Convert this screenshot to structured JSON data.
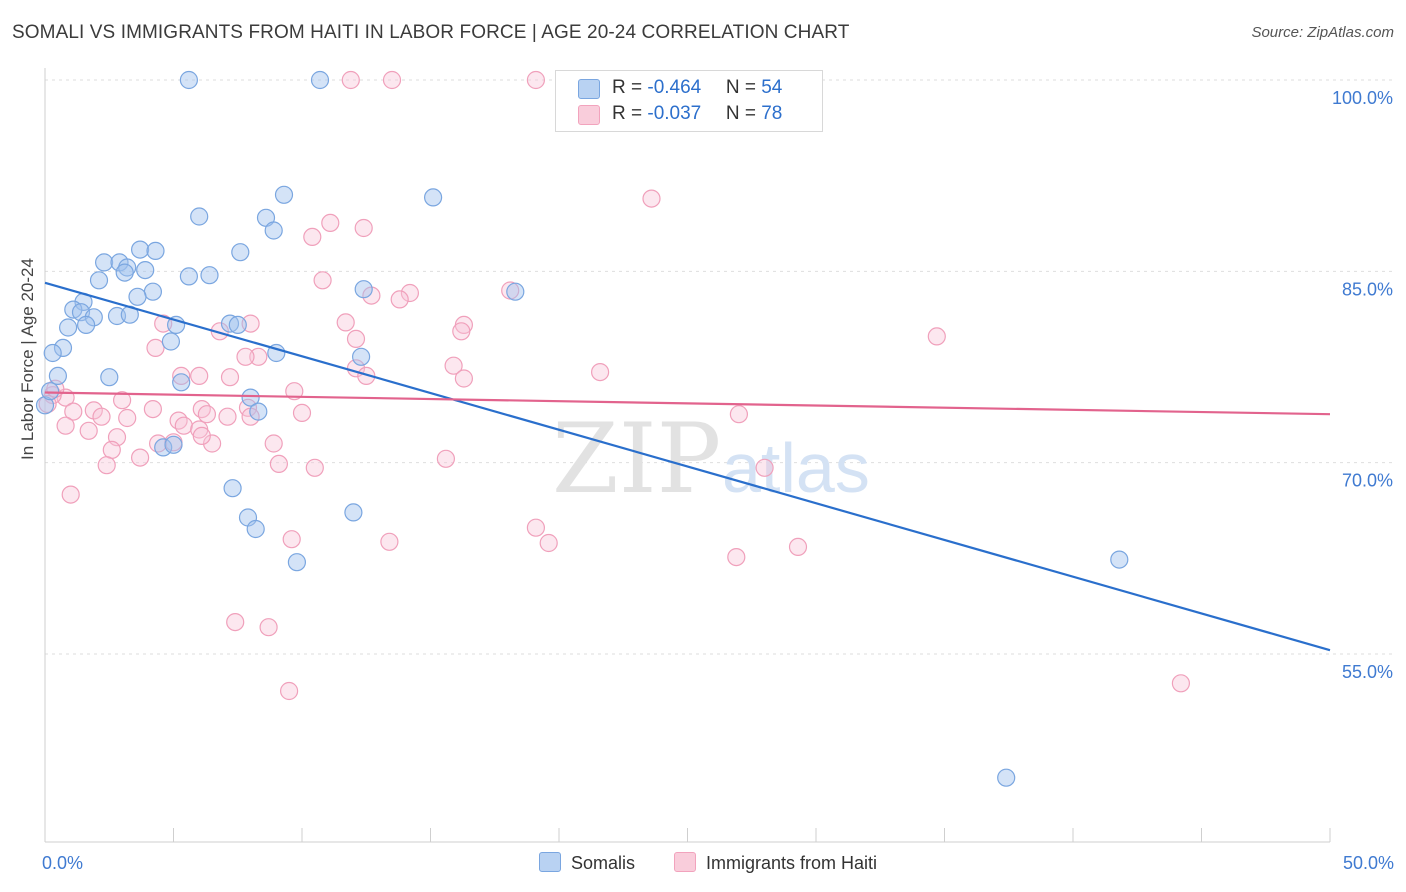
{
  "title": "SOMALI VS IMMIGRANTS FROM HAITI IN LABOR FORCE | AGE 20-24 CORRELATION CHART",
  "source": "Source: ZipAtlas.com",
  "watermark": {
    "zip": "ZIP",
    "atlas": "atlas"
  },
  "legend": {
    "rows": [
      {
        "r_label": "R = ",
        "r_value": "-0.464",
        "n_label": "N = ",
        "n_value": "54"
      },
      {
        "r_label": "R = ",
        "r_value": "-0.037",
        "n_label": "N = ",
        "n_value": "78"
      }
    ]
  },
  "chart_data": {
    "type": "scatter",
    "title": "SOMALI VS IMMIGRANTS FROM HAITI IN LABOR FORCE | AGE 20-24 CORRELATION CHART",
    "xlabel": "",
    "ylabel": "In Labor Force | Age 20-24",
    "xlim": [
      0,
      50
    ],
    "ylim": [
      40,
      101
    ],
    "x_tick_labels": [
      "0.0%",
      "50.0%"
    ],
    "x_tick_values": [
      0,
      50
    ],
    "y_tick_labels": [
      "55.0%",
      "70.0%",
      "85.0%",
      "100.0%"
    ],
    "y_tick_values": [
      55,
      70,
      85,
      100
    ],
    "grid": true,
    "legend_position": "top-center",
    "colors": {
      "somalis": "#7aa6e0",
      "haiti": "#f2a3bd",
      "somalis_line": "#2a6fcc",
      "haiti_line": "#e2638d"
    },
    "series": [
      {
        "name": "Somalis",
        "r": -0.464,
        "n": 54,
        "trend": {
          "x": [
            0,
            50
          ],
          "y": [
            84.1,
            55.3
          ]
        },
        "points": [
          [
            5.6,
            100
          ],
          [
            10.7,
            100
          ],
          [
            9.3,
            91.0
          ],
          [
            15.1,
            90.8
          ],
          [
            6.0,
            89.3
          ],
          [
            8.6,
            89.2
          ],
          [
            8.9,
            88.2
          ],
          [
            3.7,
            86.7
          ],
          [
            4.3,
            86.6
          ],
          [
            7.6,
            86.5
          ],
          [
            2.3,
            85.7
          ],
          [
            2.9,
            85.7
          ],
          [
            3.2,
            85.3
          ],
          [
            3.9,
            85.1
          ],
          [
            3.1,
            84.9
          ],
          [
            5.6,
            84.6
          ],
          [
            6.4,
            84.7
          ],
          [
            2.1,
            84.3
          ],
          [
            4.2,
            83.4
          ],
          [
            12.4,
            83.6
          ],
          [
            18.3,
            83.4
          ],
          [
            1.5,
            82.6
          ],
          [
            3.6,
            83.0
          ],
          [
            1.1,
            82.0
          ],
          [
            1.4,
            81.8
          ],
          [
            1.9,
            81.4
          ],
          [
            2.8,
            81.5
          ],
          [
            3.3,
            81.6
          ],
          [
            0.9,
            80.6
          ],
          [
            1.6,
            80.8
          ],
          [
            5.1,
            80.8
          ],
          [
            7.2,
            80.9
          ],
          [
            7.5,
            80.8
          ],
          [
            4.9,
            79.5
          ],
          [
            0.7,
            79.0
          ],
          [
            0.3,
            78.6
          ],
          [
            9.0,
            78.6
          ],
          [
            12.3,
            78.3
          ],
          [
            0.5,
            76.8
          ],
          [
            2.5,
            76.7
          ],
          [
            5.3,
            76.3
          ],
          [
            8.0,
            75.1
          ],
          [
            0.0,
            74.5
          ],
          [
            8.3,
            74.0
          ],
          [
            4.6,
            71.2
          ],
          [
            5.0,
            71.4
          ],
          [
            7.3,
            68.0
          ],
          [
            7.9,
            65.7
          ],
          [
            8.2,
            64.8
          ],
          [
            12.0,
            66.1
          ],
          [
            9.8,
            62.2
          ],
          [
            41.8,
            62.4
          ],
          [
            37.4,
            45.3
          ],
          [
            0.2,
            75.6
          ]
        ]
      },
      {
        "name": "Immigrants from Haiti",
        "r": -0.037,
        "n": 78,
        "trend": {
          "x": [
            0,
            50
          ],
          "y": [
            75.5,
            73.8
          ]
        },
        "points": [
          [
            11.9,
            100
          ],
          [
            13.5,
            100
          ],
          [
            19.1,
            100
          ],
          [
            23.6,
            90.7
          ],
          [
            11.1,
            88.8
          ],
          [
            12.4,
            88.4
          ],
          [
            10.4,
            87.7
          ],
          [
            10.8,
            84.3
          ],
          [
            18.1,
            83.5
          ],
          [
            14.2,
            83.3
          ],
          [
            12.7,
            83.1
          ],
          [
            13.8,
            82.8
          ],
          [
            4.6,
            80.9
          ],
          [
            11.7,
            81.0
          ],
          [
            16.3,
            80.8
          ],
          [
            8.0,
            80.9
          ],
          [
            6.8,
            80.3
          ],
          [
            16.2,
            80.3
          ],
          [
            12.1,
            79.7
          ],
          [
            34.7,
            79.9
          ],
          [
            4.3,
            79.0
          ],
          [
            8.3,
            78.3
          ],
          [
            7.8,
            78.3
          ],
          [
            15.9,
            77.6
          ],
          [
            12.1,
            77.4
          ],
          [
            21.6,
            77.1
          ],
          [
            5.3,
            76.8
          ],
          [
            6.0,
            76.8
          ],
          [
            7.2,
            76.7
          ],
          [
            12.5,
            76.8
          ],
          [
            16.3,
            76.6
          ],
          [
            9.7,
            75.6
          ],
          [
            0.8,
            75.1
          ],
          [
            0.3,
            75.3
          ],
          [
            3.0,
            74.9
          ],
          [
            1.1,
            74.0
          ],
          [
            1.9,
            74.1
          ],
          [
            0.1,
            74.6
          ],
          [
            4.2,
            74.2
          ],
          [
            6.1,
            74.2
          ],
          [
            7.9,
            74.3
          ],
          [
            10.0,
            73.9
          ],
          [
            2.2,
            73.6
          ],
          [
            3.2,
            73.5
          ],
          [
            5.2,
            73.3
          ],
          [
            6.3,
            73.8
          ],
          [
            7.1,
            73.6
          ],
          [
            8.0,
            73.6
          ],
          [
            27.0,
            73.8
          ],
          [
            0.8,
            72.9
          ],
          [
            1.7,
            72.5
          ],
          [
            5.4,
            72.9
          ],
          [
            6.0,
            72.6
          ],
          [
            2.8,
            72.0
          ],
          [
            4.4,
            71.5
          ],
          [
            5.0,
            71.6
          ],
          [
            6.5,
            71.5
          ],
          [
            6.1,
            72.1
          ],
          [
            8.9,
            71.5
          ],
          [
            2.6,
            71.0
          ],
          [
            3.7,
            70.4
          ],
          [
            15.6,
            70.3
          ],
          [
            2.4,
            69.8
          ],
          [
            9.1,
            69.9
          ],
          [
            10.5,
            69.6
          ],
          [
            28.0,
            69.6
          ],
          [
            1.0,
            67.5
          ],
          [
            19.1,
            64.9
          ],
          [
            9.6,
            64.0
          ],
          [
            13.4,
            63.8
          ],
          [
            19.6,
            63.7
          ],
          [
            26.9,
            62.6
          ],
          [
            29.3,
            63.4
          ],
          [
            7.4,
            57.5
          ],
          [
            8.7,
            57.1
          ],
          [
            9.5,
            52.1
          ],
          [
            44.2,
            52.7
          ],
          [
            0.4,
            75.8
          ]
        ]
      }
    ]
  }
}
